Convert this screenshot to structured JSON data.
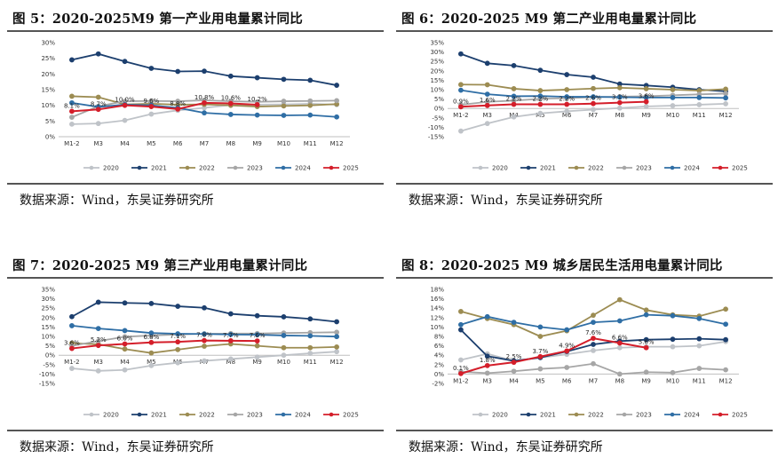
{
  "colors": {
    "2020": "#bfc3c8",
    "2021": "#1c3f6e",
    "2022": "#9c8c52",
    "2023": "#a6a6a6",
    "2024": "#2f6ea5",
    "2025": "#d41e2a"
  },
  "source_text": "数据来源：Wind，东吴证券研究所",
  "chart_data": [
    {
      "type": "line",
      "title": "图 5：2020-2025M9 第一产业用电量累计同比",
      "x": [
        "M1-2",
        "M3",
        "M4",
        "M5",
        "M6",
        "M7",
        "M8",
        "M9",
        "M10",
        "M11",
        "M12"
      ],
      "ylim": [
        0,
        30
      ],
      "yticks": [
        0,
        5,
        10,
        15,
        20,
        25,
        30
      ],
      "ytick_labels": [
        "0%",
        "5%",
        "10%",
        "15%",
        "20%",
        "25%",
        "30%"
      ],
      "series": [
        {
          "name": "2020",
          "values": [
            4.0,
            4.2,
            5.2,
            7.2,
            8.4,
            9.2,
            10.1,
            10.2,
            10.3,
            10.5,
            10.2
          ]
        },
        {
          "name": "2021",
          "values": [
            24.5,
            26.4,
            24.0,
            21.8,
            20.8,
            20.9,
            19.3,
            18.8,
            18.3,
            18.0,
            16.4
          ]
        },
        {
          "name": "2022",
          "values": [
            12.9,
            12.6,
            10.3,
            10.5,
            10.2,
            10.3,
            10.0,
            9.6,
            9.8,
            10.0,
            10.4
          ]
        },
        {
          "name": "2023",
          "values": [
            6.2,
            9.7,
            11.3,
            11.4,
            11.3,
            11.6,
            11.3,
            11.1,
            11.3,
            11.4,
            11.5
          ]
        },
        {
          "name": "2024",
          "values": [
            10.8,
            9.5,
            10.2,
            10.0,
            9.2,
            7.6,
            7.1,
            6.9,
            6.8,
            6.9,
            6.3
          ]
        },
        {
          "name": "2025",
          "values": [
            8.1,
            8.7,
            10.0,
            9.6,
            8.8,
            10.8,
            10.6,
            10.2
          ]
        }
      ],
      "labels": [
        {
          "x": 0,
          "text": "8.1%"
        },
        {
          "x": 1,
          "text": "8.7%"
        },
        {
          "x": 2,
          "text": "10.0%"
        },
        {
          "x": 3,
          "text": "9.6%"
        },
        {
          "x": 4,
          "text": "8.8%"
        },
        {
          "x": 5,
          "text": "10.8%"
        },
        {
          "x": 6,
          "text": "10.6%"
        },
        {
          "x": 7,
          "text": "10.2%"
        }
      ]
    },
    {
      "type": "line",
      "title": "图 6：2020-2025 M9 第二产业用电量累计同比",
      "x": [
        "M1-2",
        "M3",
        "M4",
        "M5",
        "M6",
        "M7",
        "M8",
        "M9",
        "M10",
        "M11",
        "M12"
      ],
      "ylim": [
        -15,
        35
      ],
      "yticks": [
        -15,
        -10,
        -5,
        0,
        5,
        10,
        15,
        20,
        25,
        30,
        35
      ],
      "ytick_labels": [
        "-15%",
        "-10%",
        "-5%",
        "0%",
        "5%",
        "10%",
        "15%",
        "20%",
        "25%",
        "30%",
        "35%"
      ],
      "series": [
        {
          "name": "2020",
          "values": [
            -12.0,
            -8.0,
            -4.5,
            -2.6,
            -1.5,
            -0.6,
            0.2,
            1.1,
            1.5,
            2.0,
            2.5
          ]
        },
        {
          "name": "2021",
          "values": [
            29.0,
            24.0,
            22.8,
            20.3,
            18.0,
            16.6,
            13.0,
            12.2,
            11.3,
            10.0,
            9.1
          ]
        },
        {
          "name": "2022",
          "values": [
            12.7,
            12.6,
            10.5,
            9.5,
            10.0,
            10.6,
            11.0,
            10.5,
            10.0,
            9.5,
            10.3
          ]
        },
        {
          "name": "2023",
          "values": [
            2.0,
            3.5,
            4.2,
            5.1,
            5.5,
            6.0,
            6.3,
            6.5,
            7.0,
            7.5,
            7.9
          ]
        },
        {
          "name": "2024",
          "values": [
            9.7,
            7.6,
            6.5,
            6.6,
            6.2,
            6.2,
            6.0,
            5.8,
            5.8,
            5.8,
            5.6
          ]
        },
        {
          "name": "2025",
          "values": [
            0.9,
            1.6,
            2.2,
            2.2,
            2.2,
            2.6,
            3.1,
            3.6
          ]
        }
      ],
      "labels": [
        {
          "x": 0,
          "text": "0.9%"
        },
        {
          "x": 1,
          "text": "1.6%"
        },
        {
          "x": 2,
          "text": "2.2%"
        },
        {
          "x": 3,
          "text": "2.2%"
        },
        {
          "x": 4,
          "text": "2.2%"
        },
        {
          "x": 5,
          "text": "2.6%"
        },
        {
          "x": 6,
          "text": "3.1%"
        },
        {
          "x": 7,
          "text": "3.6%"
        }
      ]
    },
    {
      "type": "line",
      "title": "图 7：2020-2025 M9 第三产业用电量累计同比",
      "x": [
        "M1-2",
        "M3",
        "M4",
        "M5",
        "M6",
        "M7",
        "M8",
        "M9",
        "M10",
        "M11",
        "M12"
      ],
      "ylim": [
        -15,
        35
      ],
      "yticks": [
        -15,
        -10,
        -5,
        0,
        5,
        10,
        15,
        20,
        25,
        30,
        35
      ],
      "ytick_labels": [
        "-15%",
        "-10%",
        "-5%",
        "0%",
        "5%",
        "10%",
        "15%",
        "20%",
        "25%",
        "30%",
        "35%"
      ],
      "series": [
        {
          "name": "2020",
          "values": [
            -7.0,
            -8.3,
            -7.8,
            -5.5,
            -4.0,
            -3.0,
            -2.0,
            -1.0,
            0.0,
            1.0,
            1.9
          ]
        },
        {
          "name": "2021",
          "values": [
            20.5,
            28.2,
            27.8,
            27.5,
            26.0,
            25.2,
            22.0,
            21.0,
            20.4,
            19.3,
            17.8
          ]
        },
        {
          "name": "2022",
          "values": [
            6.4,
            5.8,
            3.3,
            1.2,
            3.0,
            4.8,
            6.0,
            5.0,
            4.0,
            4.0,
            4.4
          ]
        },
        {
          "name": "2023",
          "values": [
            5.0,
            7.5,
            9.8,
            10.5,
            11.0,
            11.4,
            11.5,
            11.5,
            11.8,
            12.0,
            12.2
          ]
        },
        {
          "name": "2024",
          "values": [
            15.7,
            14.2,
            13.1,
            11.8,
            11.4,
            11.3,
            11.0,
            10.9,
            10.5,
            10.3,
            9.9
          ]
        },
        {
          "name": "2025",
          "values": [
            3.6,
            5.2,
            6.0,
            6.8,
            7.1,
            7.8,
            7.7,
            7.6
          ]
        }
      ],
      "labels": [
        {
          "x": 0,
          "text": "3.6%"
        },
        {
          "x": 1,
          "text": "5.2%"
        },
        {
          "x": 2,
          "text": "6.0%"
        },
        {
          "x": 3,
          "text": "6.8%"
        },
        {
          "x": 4,
          "text": "7.1%"
        },
        {
          "x": 5,
          "text": "7.8%"
        },
        {
          "x": 6,
          "text": "7.7%"
        },
        {
          "x": 7,
          "text": "7.6%"
        }
      ]
    },
    {
      "type": "line",
      "title": "图 8：2020-2025 M9 城乡居民生活用电量累计同比",
      "x": [
        "M1-2",
        "M3",
        "M4",
        "M5",
        "M6",
        "M7",
        "M8",
        "M9",
        "M10",
        "M11",
        "M12"
      ],
      "ylim": [
        -2,
        18
      ],
      "yticks": [
        -2,
        0,
        2,
        4,
        6,
        8,
        10,
        12,
        14,
        16,
        18
      ],
      "ytick_labels": [
        "-2%",
        "0%",
        "2%",
        "4%",
        "6%",
        "8%",
        "10%",
        "12%",
        "14%",
        "16%",
        "18%"
      ],
      "series": [
        {
          "name": "2020",
          "values": [
            3.0,
            4.3,
            2.8,
            3.5,
            4.2,
            5.0,
            5.6,
            5.8,
            5.8,
            6.0,
            6.9
          ]
        },
        {
          "name": "2021",
          "values": [
            9.4,
            3.8,
            2.8,
            3.5,
            4.8,
            6.3,
            7.0,
            7.3,
            7.4,
            7.5,
            7.3
          ]
        },
        {
          "name": "2022",
          "values": [
            13.3,
            11.8,
            10.5,
            8.0,
            9.2,
            12.5,
            15.8,
            13.6,
            12.6,
            12.3,
            13.8
          ]
        },
        {
          "name": "2023",
          "values": [
            0.5,
            0.2,
            0.6,
            1.1,
            1.4,
            2.2,
            0.0,
            0.4,
            0.3,
            1.2,
            0.9
          ]
        },
        {
          "name": "2024",
          "values": [
            10.5,
            12.2,
            11.0,
            10.0,
            9.4,
            11.0,
            11.3,
            12.6,
            12.4,
            11.8,
            10.6
          ]
        },
        {
          "name": "2025",
          "values": [
            0.1,
            1.8,
            2.5,
            3.7,
            4.9,
            7.6,
            6.6,
            5.6
          ]
        }
      ],
      "labels": [
        {
          "x": 0,
          "text": "0.1%"
        },
        {
          "x": 1,
          "text": "1.8%"
        },
        {
          "x": 2,
          "text": "2.5%"
        },
        {
          "x": 3,
          "text": "3.7%"
        },
        {
          "x": 4,
          "text": "4.9%"
        },
        {
          "x": 5,
          "text": "7.6%"
        },
        {
          "x": 6,
          "text": "6.6%"
        },
        {
          "x": 7,
          "text": "5.6%"
        }
      ]
    }
  ]
}
